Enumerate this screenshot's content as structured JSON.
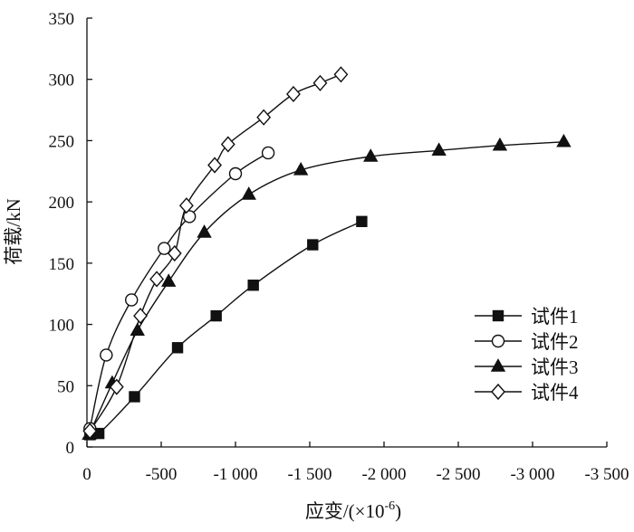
{
  "chart_data": {
    "type": "line",
    "xlabel": "应变/(×10",
    "xlabel_exponent": "-6",
    "xlabel_suffix": ")",
    "ylabel": "荷载/kN",
    "xlim": [
      0,
      -3500
    ],
    "ylim": [
      0,
      350
    ],
    "x_ticks": [
      0,
      -500,
      -1000,
      -1500,
      -2000,
      -2500,
      -3000,
      -3500
    ],
    "x_tick_labels": [
      "0",
      "-500",
      "-1 000",
      "-1 500",
      "-2 000",
      "-2 500",
      "-3 000",
      "-3 500"
    ],
    "y_ticks": [
      0,
      50,
      100,
      150,
      200,
      250,
      300,
      350
    ],
    "y_tick_labels": [
      "0",
      "50",
      "100",
      "150",
      "200",
      "250",
      "300",
      "350"
    ],
    "grid": false,
    "legend_position": "bottom-right",
    "series": [
      {
        "name": "试件1",
        "marker": "filled-square",
        "points": [
          [
            -20,
            10
          ],
          [
            -80,
            11
          ],
          [
            -320,
            41
          ],
          [
            -610,
            81
          ],
          [
            -870,
            107
          ],
          [
            -1120,
            132
          ],
          [
            -1520,
            165
          ],
          [
            -1850,
            184
          ]
        ]
      },
      {
        "name": "试件2",
        "marker": "open-circle",
        "points": [
          [
            -20,
            15
          ],
          [
            -130,
            75
          ],
          [
            -300,
            120
          ],
          [
            -520,
            162
          ],
          [
            -690,
            188
          ],
          [
            -1000,
            223
          ],
          [
            -1220,
            240
          ]
        ]
      },
      {
        "name": "试件3",
        "marker": "filled-triangle",
        "points": [
          [
            -15,
            10
          ],
          [
            -170,
            52
          ],
          [
            -340,
            95
          ],
          [
            -550,
            135
          ],
          [
            -790,
            175
          ],
          [
            -1090,
            206
          ],
          [
            -1440,
            226
          ],
          [
            -1910,
            237
          ],
          [
            -2370,
            242
          ],
          [
            -2780,
            246
          ],
          [
            -3210,
            249
          ]
        ]
      },
      {
        "name": "试件4",
        "marker": "open-diamond",
        "points": [
          [
            -20,
            13
          ],
          [
            -200,
            49
          ],
          [
            -360,
            107
          ],
          [
            -470,
            137
          ],
          [
            -590,
            158
          ],
          [
            -670,
            197
          ],
          [
            -860,
            230
          ],
          [
            -950,
            247
          ],
          [
            -1190,
            269
          ],
          [
            -1390,
            288
          ],
          [
            -1570,
            297
          ],
          [
            -1710,
            304
          ]
        ]
      }
    ]
  }
}
